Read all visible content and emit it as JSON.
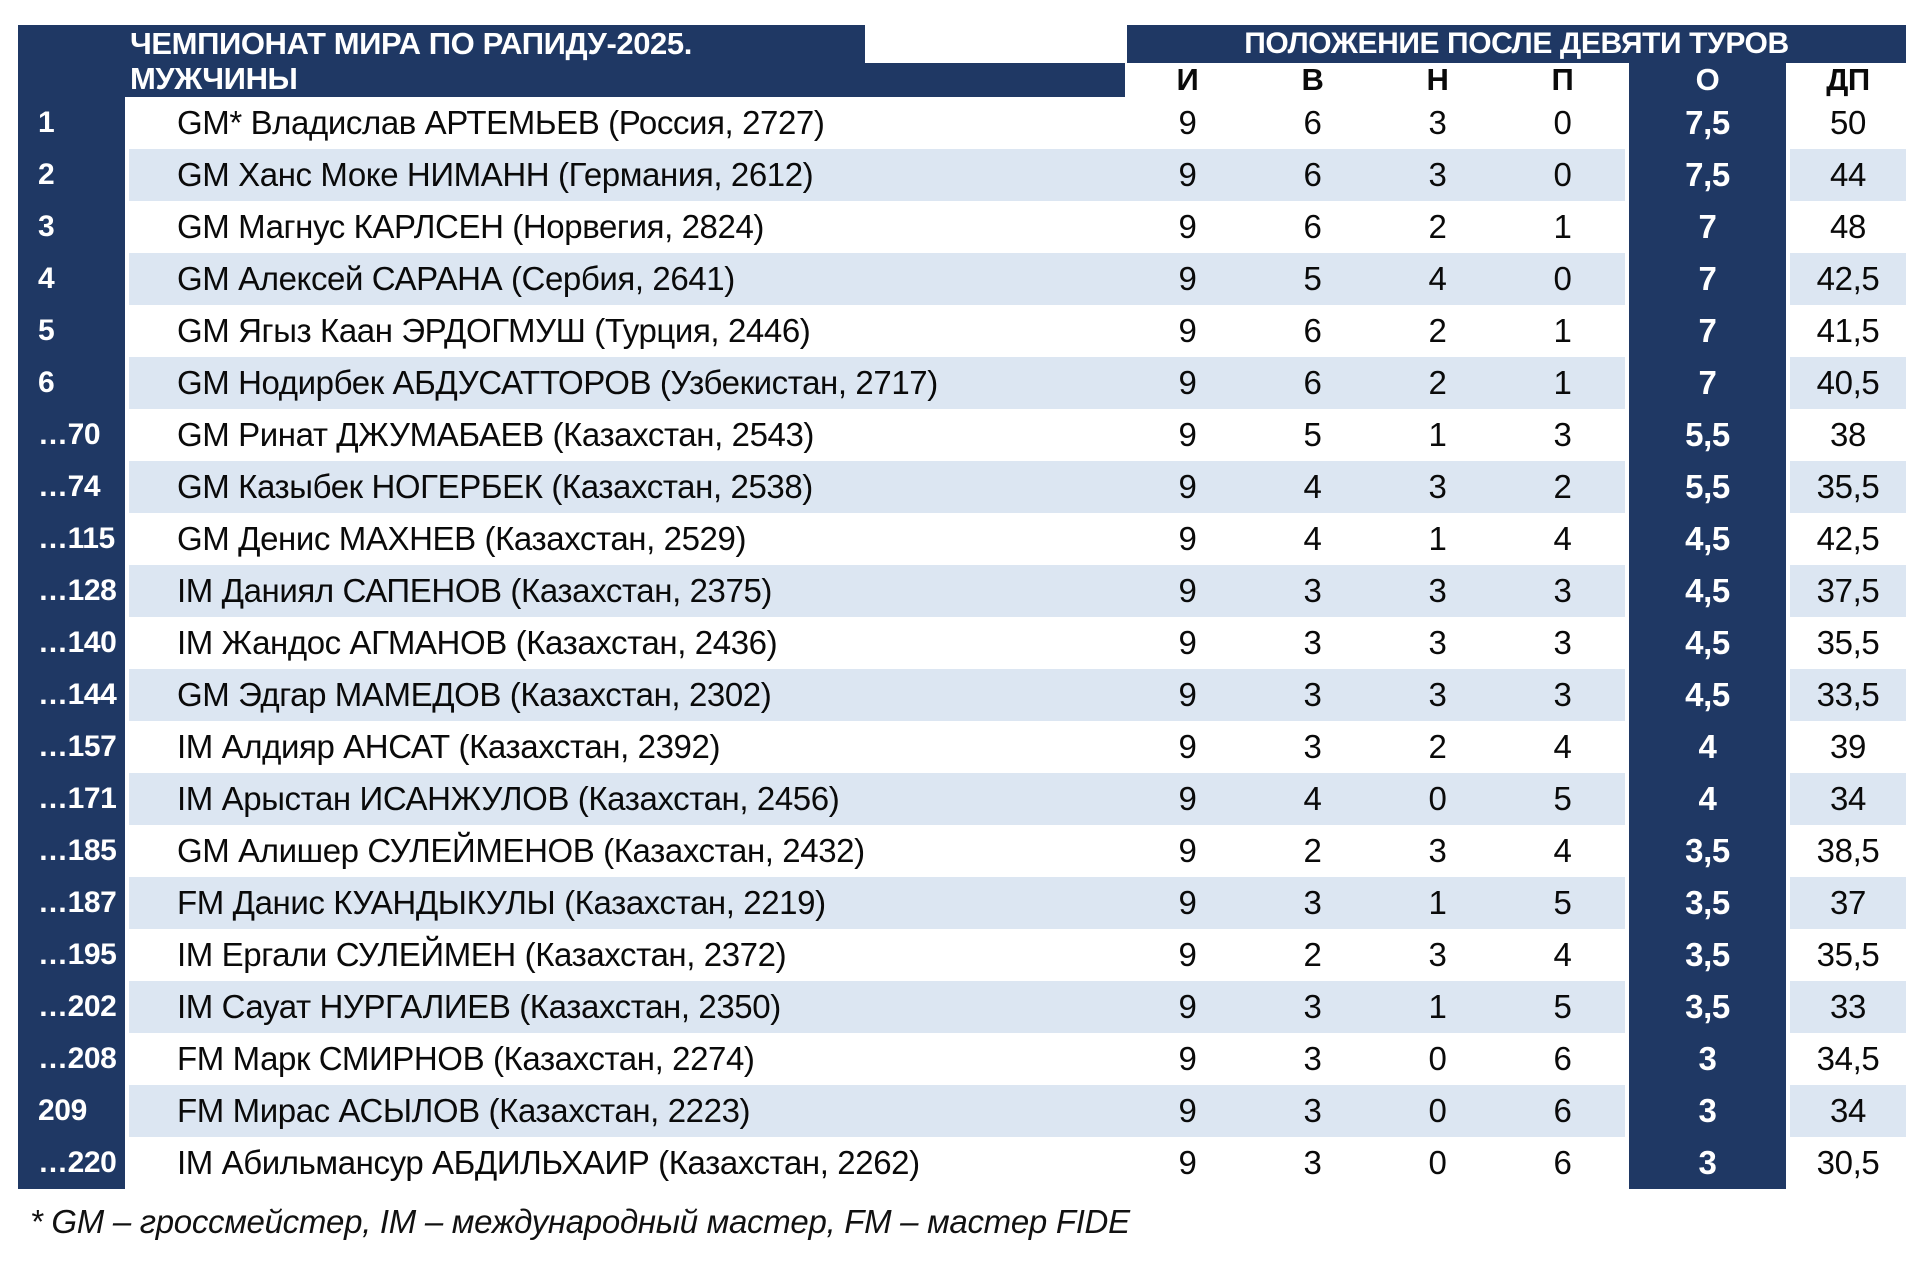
{
  "colors": {
    "navy": "#1F3864",
    "stripe": "#DCE6F2",
    "background": "#FFFFFF",
    "text": "#0A0A0A"
  },
  "header": {
    "title_line1": "ЧЕМПИОНАТ МИРА ПО РАПИДУ-2025.",
    "title_line2": "МУЖЧИНЫ",
    "standings_title": "ПОЛОЖЕНИЕ ПОСЛЕ ДЕВЯТИ ТУРОВ",
    "columns": {
      "games": "И",
      "wins": "В",
      "draws": "Н",
      "losses": "П",
      "points": "О",
      "tiebreak": "ДП"
    }
  },
  "rows": [
    {
      "rank": "1",
      "name": "GM* Владислав АРТЕМЬЕВ (Россия, 2727)",
      "games": "9",
      "wins": "6",
      "draws": "3",
      "losses": "0",
      "points": "7,5",
      "tiebreak": "50"
    },
    {
      "rank": "2",
      "name": "GM Ханс Моке НИМАНН (Германия, 2612)",
      "games": "9",
      "wins": "6",
      "draws": "3",
      "losses": "0",
      "points": "7,5",
      "tiebreak": "44"
    },
    {
      "rank": "3",
      "name": "GM Магнус КАРЛСЕН (Норвегия, 2824)",
      "games": "9",
      "wins": "6",
      "draws": "2",
      "losses": "1",
      "points": "7",
      "tiebreak": "48"
    },
    {
      "rank": "4",
      "name": "GM Алексей САРАНА (Сербия, 2641)",
      "games": "9",
      "wins": "5",
      "draws": "4",
      "losses": "0",
      "points": "7",
      "tiebreak": "42,5"
    },
    {
      "rank": "5",
      "name": "GM Ягыз Каан ЭРДОГМУШ (Турция, 2446)",
      "games": "9",
      "wins": "6",
      "draws": "2",
      "losses": "1",
      "points": "7",
      "tiebreak": "41,5"
    },
    {
      "rank": "6",
      "name": "GM Нодирбек АБДУСАТТОРОВ (Узбекистан, 2717)",
      "games": "9",
      "wins": "6",
      "draws": "2",
      "losses": "1",
      "points": "7",
      "tiebreak": "40,5"
    },
    {
      "rank": "…70",
      "name": "GM Ринат ДЖУМАБАЕВ (Казахстан, 2543)",
      "games": "9",
      "wins": "5",
      "draws": "1",
      "losses": "3",
      "points": "5,5",
      "tiebreak": "38"
    },
    {
      "rank": "…74",
      "name": "GM Казыбек НОГЕРБЕК (Казахстан, 2538)",
      "games": "9",
      "wins": "4",
      "draws": "3",
      "losses": "2",
      "points": "5,5",
      "tiebreak": "35,5"
    },
    {
      "rank": "…115",
      "name": "GM Денис МАХНЕВ (Казахстан, 2529)",
      "games": "9",
      "wins": "4",
      "draws": "1",
      "losses": "4",
      "points": "4,5",
      "tiebreak": "42,5"
    },
    {
      "rank": "…128",
      "name": "IM Даниял САПЕНОВ (Казахстан, 2375)",
      "games": "9",
      "wins": "3",
      "draws": "3",
      "losses": "3",
      "points": "4,5",
      "tiebreak": "37,5"
    },
    {
      "rank": "…140",
      "name": "IM Жандос АГМАНОВ (Казахстан, 2436)",
      "games": "9",
      "wins": "3",
      "draws": "3",
      "losses": "3",
      "points": "4,5",
      "tiebreak": "35,5"
    },
    {
      "rank": "…144",
      "name": "GM Эдгар МАМЕДОВ (Казахстан, 2302)",
      "games": "9",
      "wins": "3",
      "draws": "3",
      "losses": "3",
      "points": "4,5",
      "tiebreak": "33,5"
    },
    {
      "rank": "…157",
      "name": "IM Алдияр АНСАТ (Казахстан, 2392)",
      "games": "9",
      "wins": "3",
      "draws": "2",
      "losses": "4",
      "points": "4",
      "tiebreak": "39"
    },
    {
      "rank": "…171",
      "name": "IM Арыстан ИСАНЖУЛОВ (Казахстан, 2456)",
      "games": "9",
      "wins": "4",
      "draws": "0",
      "losses": "5",
      "points": "4",
      "tiebreak": "34"
    },
    {
      "rank": "…185",
      "name": "GM Алишер СУЛЕЙМЕНОВ (Казахстан, 2432)",
      "games": "9",
      "wins": "2",
      "draws": "3",
      "losses": "4",
      "points": "3,5",
      "tiebreak": "38,5"
    },
    {
      "rank": "…187",
      "name": "FM Данис КУАНДЫКУЛЫ (Казахстан, 2219)",
      "games": "9",
      "wins": "3",
      "draws": "1",
      "losses": "5",
      "points": "3,5",
      "tiebreak": "37"
    },
    {
      "rank": "…195",
      "name": "IM Ергали СУЛЕЙМЕН (Казахстан, 2372)",
      "games": "9",
      "wins": "2",
      "draws": "3",
      "losses": "4",
      "points": "3,5",
      "tiebreak": "35,5"
    },
    {
      "rank": "…202",
      "name": "IM Сауат НУРГАЛИЕВ (Казахстан, 2350)",
      "games": "9",
      "wins": "3",
      "draws": "1",
      "losses": "5",
      "points": "3,5",
      "tiebreak": "33"
    },
    {
      "rank": "…208",
      "name": "FM Марк СМИРНОВ (Казахстан, 2274)",
      "games": "9",
      "wins": "3",
      "draws": "0",
      "losses": "6",
      "points": "3",
      "tiebreak": "34,5"
    },
    {
      "rank": "209",
      "name": "FM Мирас АСЫЛОВ (Казахстан, 2223)",
      "games": "9",
      "wins": "3",
      "draws": "0",
      "losses": "6",
      "points": "3",
      "tiebreak": "34"
    },
    {
      "rank": "…220",
      "name": "IM Абильмансур АБДИЛЬХАИР (Казахстан, 2262)",
      "games": "9",
      "wins": "3",
      "draws": "0",
      "losses": "6",
      "points": "3",
      "tiebreak": "30,5"
    }
  ],
  "footer": {
    "note": "* GM – гроссмейстер, IM – международный мастер, FM – мастер FIDE"
  }
}
